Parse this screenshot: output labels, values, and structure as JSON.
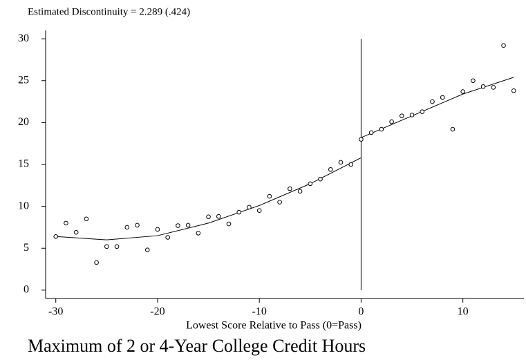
{
  "chart_data": {
    "type": "scatter",
    "title": "Estimated Discontinuity = 2.289 (.424)",
    "x_label": "Lowest Score Relative to Pass (0=Pass)",
    "caption": "Maximum of 2 or 4-Year College Credit Hours",
    "xlim": [
      -31,
      16
    ],
    "ylim": [
      -1,
      31
    ],
    "xticks": [
      -30,
      -20,
      -10,
      0,
      10
    ],
    "yticks": [
      0,
      5,
      10,
      15,
      20,
      25,
      30
    ],
    "cutoff": 0,
    "points": {
      "x": [
        -30,
        -29,
        -28,
        -27,
        -26,
        -25,
        -24,
        -23,
        -22,
        -21,
        -20,
        -19,
        -18,
        -17,
        -16,
        -15,
        -14,
        -13,
        -12,
        -11,
        -10,
        -9,
        -8,
        -7,
        -6,
        -5,
        -4,
        -3,
        -2,
        -1,
        0,
        1,
        2,
        3,
        4,
        5,
        6,
        7,
        8,
        9,
        10,
        11,
        12,
        13,
        14,
        15
      ],
      "y": [
        6.4,
        8.0,
        6.9,
        8.5,
        3.3,
        5.2,
        5.2,
        7.5,
        7.75,
        4.8,
        7.25,
        6.3,
        7.7,
        7.75,
        6.8,
        8.75,
        8.8,
        7.9,
        9.3,
        9.9,
        9.5,
        11.2,
        10.5,
        12.1,
        11.8,
        12.7,
        13.25,
        14.4,
        15.25,
        15.0,
        18.0,
        18.8,
        19.2,
        20.1,
        20.8,
        20.9,
        21.3,
        22.5,
        23.0,
        19.2,
        23.7,
        25.0,
        24.3,
        24.2,
        29.2,
        23.8
      ]
    },
    "fits": [
      {
        "x": [
          -30,
          -25,
          -20,
          -15,
          -10,
          -5,
          0
        ],
        "y": [
          6.4,
          6.0,
          6.5,
          8.0,
          10.1,
          12.7,
          15.8
        ]
      },
      {
        "x": [
          0,
          5,
          10,
          15
        ],
        "y": [
          18.2,
          20.8,
          23.4,
          25.4
        ]
      }
    ]
  }
}
